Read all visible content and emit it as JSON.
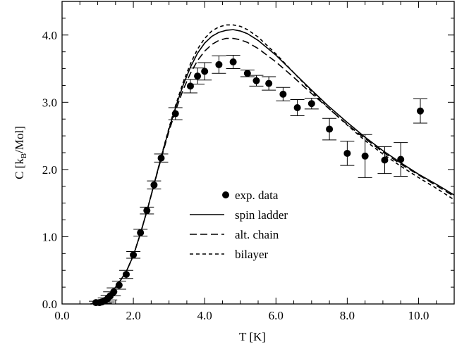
{
  "chart_data": {
    "type": "scatter",
    "xlabel": "T [K]",
    "ylabel_main": "C [k",
    "ylabel_sub": "B",
    "ylabel_tail": "/Mol]",
    "xlim": [
      0.0,
      11.0
    ],
    "ylim": [
      0.0,
      4.5
    ],
    "xticks": [
      {
        "v": 0.0,
        "label": "0.0"
      },
      {
        "v": 2.0,
        "label": "2.0"
      },
      {
        "v": 4.0,
        "label": "4.0"
      },
      {
        "v": 6.0,
        "label": "6.0"
      },
      {
        "v": 8.0,
        "label": "8.0"
      },
      {
        "v": 10.0,
        "label": "10.0"
      }
    ],
    "yticks": [
      {
        "v": 0.0,
        "label": "0.0"
      },
      {
        "v": 1.0,
        "label": "1.0"
      },
      {
        "v": 2.0,
        "label": "2.0"
      },
      {
        "v": 3.0,
        "label": "3.0"
      },
      {
        "v": 4.0,
        "label": "4.0"
      }
    ],
    "grid": false,
    "legend_position": "center",
    "series": [
      {
        "name": "exp. data",
        "kind": "points",
        "points": [
          {
            "x": 0.95,
            "y": 0.02,
            "err": 0.02
          },
          {
            "x": 1.05,
            "y": 0.02,
            "err": 0.02
          },
          {
            "x": 1.12,
            "y": 0.03,
            "err": 0.03
          },
          {
            "x": 1.2,
            "y": 0.05,
            "err": 0.04
          },
          {
            "x": 1.28,
            "y": 0.08,
            "err": 0.05
          },
          {
            "x": 1.35,
            "y": 0.12,
            "err": 0.06
          },
          {
            "x": 1.45,
            "y": 0.18,
            "err": 0.06
          },
          {
            "x": 1.6,
            "y": 0.28,
            "err": 0.06
          },
          {
            "x": 1.8,
            "y": 0.44,
            "err": 0.06
          },
          {
            "x": 2.0,
            "y": 0.73,
            "err": 0.05
          },
          {
            "x": 2.2,
            "y": 1.06,
            "err": 0.05
          },
          {
            "x": 2.38,
            "y": 1.39,
            "err": 0.05
          },
          {
            "x": 2.58,
            "y": 1.77,
            "err": 0.06
          },
          {
            "x": 2.78,
            "y": 2.17,
            "err": 0.06
          },
          {
            "x": 3.18,
            "y": 2.83,
            "err": 0.09
          },
          {
            "x": 3.6,
            "y": 3.24,
            "err": 0.1
          },
          {
            "x": 3.8,
            "y": 3.39,
            "err": 0.12
          },
          {
            "x": 4.0,
            "y": 3.46,
            "err": 0.13
          },
          {
            "x": 4.4,
            "y": 3.56,
            "err": 0.13
          },
          {
            "x": 4.8,
            "y": 3.6,
            "err": 0.1
          },
          {
            "x": 5.2,
            "y": 3.43,
            "err": 0.05
          },
          {
            "x": 5.45,
            "y": 3.32,
            "err": 0.08
          },
          {
            "x": 5.8,
            "y": 3.28,
            "err": 0.1
          },
          {
            "x": 6.2,
            "y": 3.12,
            "err": 0.1
          },
          {
            "x": 6.6,
            "y": 2.92,
            "err": 0.12
          },
          {
            "x": 7.0,
            "y": 2.98,
            "err": 0.08
          },
          {
            "x": 7.5,
            "y": 2.6,
            "err": 0.16
          },
          {
            "x": 8.0,
            "y": 2.24,
            "err": 0.18
          },
          {
            "x": 8.5,
            "y": 2.2,
            "err": 0.32
          },
          {
            "x": 9.05,
            "y": 2.14,
            "err": 0.2
          },
          {
            "x": 9.5,
            "y": 2.15,
            "err": 0.25
          },
          {
            "x": 10.05,
            "y": 2.87,
            "err": 0.18
          }
        ]
      },
      {
        "name": "spin ladder",
        "kind": "line",
        "dash": "solid",
        "x": [
          0.8,
          1.0,
          1.2,
          1.4,
          1.6,
          1.8,
          2.0,
          2.2,
          2.4,
          2.6,
          2.8,
          3.0,
          3.2,
          3.4,
          3.6,
          3.8,
          4.0,
          4.2,
          4.4,
          4.6,
          4.8,
          5.0,
          5.2,
          5.5,
          6.0,
          6.5,
          7.0,
          7.5,
          8.0,
          8.5,
          9.0,
          9.5,
          10.0,
          10.5,
          11.0
        ],
        "y": [
          0.0,
          0.02,
          0.08,
          0.18,
          0.32,
          0.48,
          0.72,
          1.05,
          1.42,
          1.82,
          2.22,
          2.6,
          2.95,
          3.26,
          3.52,
          3.73,
          3.88,
          3.98,
          4.04,
          4.07,
          4.08,
          4.06,
          4.02,
          3.92,
          3.7,
          3.44,
          3.18,
          2.93,
          2.7,
          2.48,
          2.28,
          2.1,
          1.93,
          1.78,
          1.62
        ]
      },
      {
        "name": "alt. chain",
        "kind": "line",
        "dash": "long",
        "x": [
          0.8,
          1.0,
          1.2,
          1.4,
          1.6,
          1.8,
          2.0,
          2.2,
          2.4,
          2.6,
          2.8,
          3.0,
          3.2,
          3.4,
          3.6,
          3.8,
          4.0,
          4.2,
          4.4,
          4.6,
          4.8,
          5.0,
          5.2,
          5.5,
          6.0,
          6.5,
          7.0,
          7.5,
          8.0,
          8.5,
          9.0,
          9.5,
          10.0,
          10.5,
          11.0
        ],
        "y": [
          0.0,
          0.02,
          0.08,
          0.18,
          0.32,
          0.48,
          0.72,
          1.05,
          1.42,
          1.81,
          2.2,
          2.57,
          2.9,
          3.19,
          3.43,
          3.62,
          3.76,
          3.86,
          3.92,
          3.95,
          3.95,
          3.93,
          3.89,
          3.8,
          3.6,
          3.37,
          3.13,
          2.9,
          2.67,
          2.46,
          2.26,
          2.08,
          1.92,
          1.76,
          1.6
        ]
      },
      {
        "name": "bilayer",
        "kind": "line",
        "dash": "short",
        "x": [
          0.8,
          1.0,
          1.2,
          1.4,
          1.6,
          1.8,
          2.0,
          2.2,
          2.4,
          2.6,
          2.8,
          3.0,
          3.2,
          3.4,
          3.6,
          3.8,
          4.0,
          4.2,
          4.4,
          4.6,
          4.8,
          5.0,
          5.2,
          5.5,
          6.0,
          6.5,
          7.0,
          7.5,
          8.0,
          8.5,
          9.0,
          9.5,
          10.0,
          10.5,
          11.0
        ],
        "y": [
          0.0,
          0.02,
          0.08,
          0.18,
          0.32,
          0.48,
          0.72,
          1.05,
          1.42,
          1.82,
          2.23,
          2.62,
          2.98,
          3.3,
          3.57,
          3.79,
          3.95,
          4.06,
          4.12,
          4.15,
          4.15,
          4.13,
          4.08,
          3.97,
          3.72,
          3.44,
          3.16,
          2.9,
          2.66,
          2.43,
          2.23,
          2.05,
          1.88,
          1.72,
          1.55
        ]
      }
    ]
  }
}
